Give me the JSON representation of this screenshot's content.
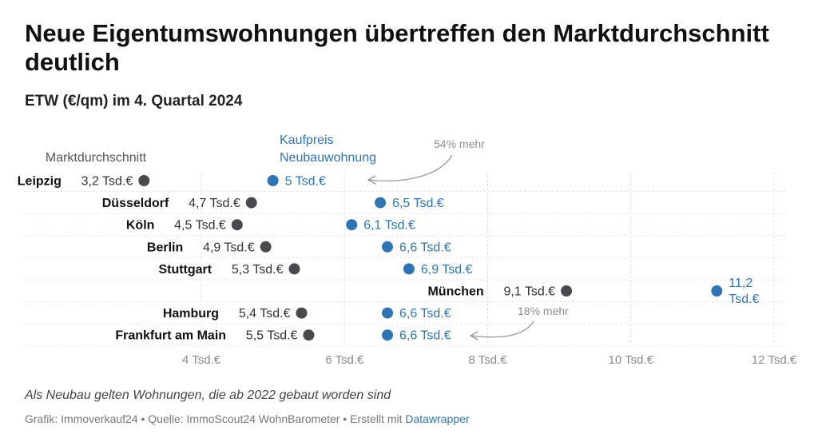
{
  "title": "Neue Eigentumswohnungen übertreffen den Marktdurchschnitt deutlich",
  "subtitle": "ETW (€/qm) im 4. Quartal 2024",
  "notes": "Als Neubau gelten Wohnungen, die ab 2022 gebaut worden sind",
  "footer": {
    "prefix": "Grafik: Immoverkauf24 • Quelle: ImmoScout24 WohnBarometer • Erstellt mit ",
    "link": "Datawrapper"
  },
  "colors": {
    "market": "#4a4a4e",
    "new": "#2f75b5",
    "grid": "#d6d6d6",
    "axis": "#8a8a8a",
    "annotation": "#8f8f8f"
  },
  "chart_data": {
    "type": "dumbbell",
    "unit_suffix": " Tsd.€",
    "xlim": [
      2.9,
      12.4
    ],
    "x_ticks": [
      4,
      6,
      8,
      10,
      12
    ],
    "x_tick_labels": [
      "4 Tsd.€",
      "6 Tsd.€",
      "8 Tsd.€",
      "10 Tsd.€",
      "12 Tsd.€"
    ],
    "series": [
      {
        "name": "Marktdurchschnitt",
        "key": "market"
      },
      {
        "name": "Kaufpreis\nNeubauwohnung",
        "key": "new"
      }
    ],
    "rows": [
      {
        "city": "Leipzig",
        "market": 3.2,
        "market_label": "3,2 Tsd.€",
        "new": 5.0,
        "new_label": "5 Tsd.€"
      },
      {
        "city": "Düsseldorf",
        "market": 4.7,
        "market_label": "4,7 Tsd.€",
        "new": 6.5,
        "new_label": "6,5 Tsd.€"
      },
      {
        "city": "Köln",
        "market": 4.5,
        "market_label": "4,5 Tsd.€",
        "new": 6.1,
        "new_label": "6,1 Tsd.€"
      },
      {
        "city": "Berlin",
        "market": 4.9,
        "market_label": "4,9 Tsd.€",
        "new": 6.6,
        "new_label": "6,6 Tsd.€"
      },
      {
        "city": "Stuttgart",
        "market": 5.3,
        "market_label": "5,3 Tsd.€",
        "new": 6.9,
        "new_label": "6,9 Tsd.€"
      },
      {
        "city": "München",
        "market": 9.1,
        "market_label": "9,1 Tsd.€",
        "new": 11.2,
        "new_label": "11,2\nTsd.€"
      },
      {
        "city": "Hamburg",
        "market": 5.4,
        "market_label": "5,4 Tsd.€",
        "new": 6.6,
        "new_label": "6,6 Tsd.€"
      },
      {
        "city": "Frankfurt am Main",
        "market": 5.5,
        "market_label": "5,5 Tsd.€",
        "new": 6.6,
        "new_label": "6,6 Tsd.€"
      }
    ],
    "annotations": [
      {
        "text": "54% mehr",
        "row": 0
      },
      {
        "text": "18% mehr",
        "row": 7
      }
    ]
  }
}
